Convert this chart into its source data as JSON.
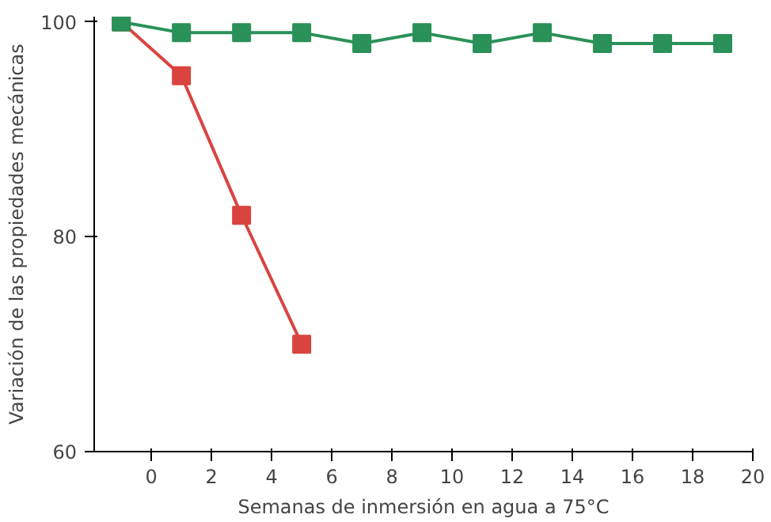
{
  "chart_data": {
    "type": "line",
    "xlabel": "Semanas de inmersión en agua a 75°C",
    "ylabel": "Variación de las propiedades mecánicas",
    "xlim": [
      -1.9,
      20
    ],
    "ylim": [
      60,
      100.5
    ],
    "xticks": [
      0,
      2,
      4,
      6,
      8,
      10,
      12,
      14,
      16,
      18,
      20
    ],
    "yticks": [
      60,
      80,
      100
    ],
    "grid": false,
    "marker": "square",
    "line_style": "solid",
    "series": [
      {
        "color": "#d9443f",
        "x": [
          -1,
          1,
          3,
          5
        ],
        "values": [
          100,
          95,
          82,
          70
        ]
      },
      {
        "color": "#2a9158",
        "x": [
          -1,
          1,
          3,
          5,
          7,
          9,
          11,
          13,
          15,
          17,
          19
        ],
        "values": [
          100,
          99,
          99,
          99,
          98,
          99,
          98,
          99,
          98,
          98,
          98
        ]
      }
    ]
  }
}
